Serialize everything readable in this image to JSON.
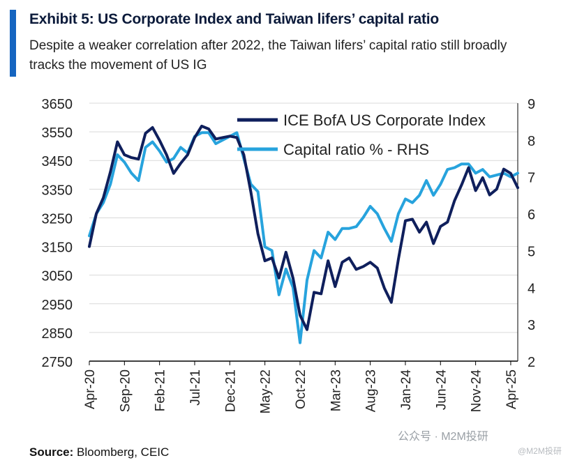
{
  "header": {
    "title": "Exhibit 5: US Corporate Index and Taiwan lifers’ capital ratio",
    "subtitle": "Despite a weaker correlation after 2022, the Taiwan lifers’ capital ratio still broadly tracks the movement of US IG",
    "accent_color": "#1565c0"
  },
  "footer": {
    "source_label": "Source:",
    "source_text": " Bloomberg, CEIC",
    "watermark": "公众号 · M2M投研",
    "watermark2": "@M2M投研"
  },
  "chart_data": {
    "type": "line",
    "xlabel": "",
    "ylabel": "",
    "y_left": {
      "min": 2750,
      "max": 3650,
      "ticks": [
        3650,
        3550,
        3450,
        3350,
        3250,
        3150,
        3050,
        2950,
        2850,
        2750
      ]
    },
    "y_right": {
      "min": 2,
      "max": 9,
      "ticks": [
        9,
        8,
        7,
        6,
        5,
        4,
        3,
        2
      ]
    },
    "x_range": [
      "2020-04",
      "2025-04"
    ],
    "x_ticks": [
      {
        "label": "Apr-20",
        "month": 0
      },
      {
        "label": "Sep-20",
        "month": 5
      },
      {
        "label": "Feb-21",
        "month": 10
      },
      {
        "label": "Jul-21",
        "month": 15
      },
      {
        "label": "Dec-21",
        "month": 20
      },
      {
        "label": "May-22",
        "month": 25
      },
      {
        "label": "Oct-22",
        "month": 30
      },
      {
        "label": "Mar-23",
        "month": 35
      },
      {
        "label": "Aug-23",
        "month": 40
      },
      {
        "label": "Jan-24",
        "month": 45
      },
      {
        "label": "Jun-24",
        "month": 50
      },
      {
        "label": "Nov-24",
        "month": 55
      },
      {
        "label": "Apr-25",
        "month": 60
      }
    ],
    "grid": true,
    "legend_position": "top-right",
    "series": [
      {
        "name": "ICE BofA US Corporate Index",
        "axis": "left",
        "color": "#0f1f5c",
        "values": [
          3150,
          3265,
          3320,
          3410,
          3515,
          3470,
          3460,
          3455,
          3545,
          3565,
          3520,
          3470,
          3405,
          3440,
          3470,
          3530,
          3570,
          3560,
          3525,
          3530,
          3535,
          3530,
          3470,
          3340,
          3195,
          3100,
          3110,
          3040,
          3130,
          3040,
          2910,
          2860,
          2990,
          2985,
          3100,
          3010,
          3095,
          3110,
          3070,
          3080,
          3095,
          3075,
          3005,
          2955,
          3105,
          3240,
          3245,
          3200,
          3235,
          3160,
          3220,
          3235,
          3310,
          3365,
          3425,
          3345,
          3390,
          3330,
          3350,
          3420,
          3405,
          3355
        ]
      },
      {
        "name": "Capital ratio % - RHS",
        "axis": "right",
        "color": "#27a3dd",
        "values": [
          5.4,
          6.0,
          6.3,
          6.8,
          7.6,
          7.4,
          7.1,
          6.9,
          7.8,
          7.95,
          7.7,
          7.4,
          7.5,
          7.8,
          7.65,
          8.1,
          8.2,
          8.2,
          7.9,
          8.0,
          8.1,
          8.2,
          7.5,
          6.8,
          6.6,
          5.1,
          5.0,
          3.8,
          4.5,
          4.0,
          2.5,
          4.2,
          5.0,
          4.8,
          5.5,
          5.3,
          5.6,
          5.6,
          5.65,
          5.9,
          6.2,
          6.0,
          5.6,
          5.25,
          6.0,
          6.4,
          6.3,
          6.5,
          6.9,
          6.5,
          6.8,
          7.2,
          7.25,
          7.35,
          7.35,
          7.1,
          7.2,
          7.0,
          7.05,
          7.1,
          7.0,
          7.1
        ]
      }
    ]
  }
}
